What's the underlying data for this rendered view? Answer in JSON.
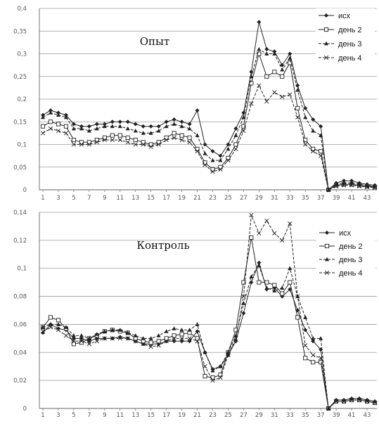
{
  "chart_data": [
    {
      "type": "line",
      "title": "Опыт",
      "xlabel": "",
      "ylabel": "",
      "ylim": [
        0,
        0.4
      ],
      "y_ticks": [
        "0",
        "0,05",
        "0,1",
        "0,15",
        "0,2",
        "0,25",
        "0,3",
        "0,35",
        "0,4"
      ],
      "x_ticks": [
        "1",
        "3",
        "5",
        "7",
        "9",
        "11",
        "13",
        "15",
        "17",
        "19",
        "21",
        "23",
        "25",
        "27",
        "29",
        "31",
        "33",
        "35",
        "37",
        "39",
        "41",
        "43"
      ],
      "grid": true,
      "legend_position": "right",
      "x": [
        1,
        2,
        3,
        4,
        5,
        6,
        7,
        8,
        9,
        10,
        11,
        12,
        13,
        14,
        15,
        16,
        17,
        18,
        19,
        20,
        21,
        22,
        23,
        24,
        25,
        26,
        27,
        28,
        29,
        30,
        31,
        32,
        33,
        34,
        35,
        36,
        37,
        38,
        39,
        40,
        41,
        42,
        43,
        44
      ],
      "series": [
        {
          "name": "исх",
          "values": [
            0.165,
            0.175,
            0.17,
            0.165,
            0.145,
            0.14,
            0.14,
            0.145,
            0.145,
            0.15,
            0.15,
            0.15,
            0.145,
            0.14,
            0.14,
            0.14,
            0.15,
            0.155,
            0.15,
            0.145,
            0.175,
            0.1,
            0.085,
            0.075,
            0.1,
            0.135,
            0.17,
            0.26,
            0.37,
            0.31,
            0.305,
            0.275,
            0.3,
            0.23,
            0.18,
            0.155,
            0.14,
            0,
            0.015,
            0.02,
            0.02,
            0.015,
            0.012,
            0.01
          ]
        },
        {
          "name": "день 2",
          "values": [
            0.14,
            0.15,
            0.145,
            0.14,
            0.11,
            0.105,
            0.105,
            0.11,
            0.115,
            0.12,
            0.12,
            0.115,
            0.11,
            0.105,
            0.1,
            0.105,
            0.115,
            0.125,
            0.12,
            0.115,
            0.09,
            0.06,
            0.045,
            0.05,
            0.07,
            0.1,
            0.14,
            0.235,
            0.3,
            0.25,
            0.26,
            0.25,
            0.28,
            0.18,
            0.11,
            0.09,
            0.085,
            0,
            0.01,
            0.012,
            0.012,
            0.01,
            0.008,
            0.006
          ]
        },
        {
          "name": "день 3",
          "values": [
            0.16,
            0.17,
            0.165,
            0.16,
            0.135,
            0.135,
            0.13,
            0.135,
            0.14,
            0.14,
            0.14,
            0.135,
            0.13,
            0.125,
            0.125,
            0.13,
            0.14,
            0.145,
            0.14,
            0.135,
            0.12,
            0.08,
            0.065,
            0.065,
            0.09,
            0.12,
            0.16,
            0.25,
            0.31,
            0.3,
            0.3,
            0.265,
            0.29,
            0.22,
            0.16,
            0.13,
            0.12,
            0,
            0.012,
            0.015,
            0.015,
            0.012,
            0.01,
            0.008
          ]
        },
        {
          "name": "день 4",
          "values": [
            0.125,
            0.135,
            0.13,
            0.125,
            0.1,
            0.1,
            0.1,
            0.105,
            0.11,
            0.11,
            0.11,
            0.105,
            0.1,
            0.1,
            0.095,
            0.1,
            0.11,
            0.115,
            0.11,
            0.105,
            0.085,
            0.055,
            0.04,
            0.045,
            0.065,
            0.09,
            0.13,
            0.19,
            0.23,
            0.195,
            0.215,
            0.205,
            0.21,
            0.16,
            0.1,
            0.085,
            0.075,
            0,
            0.008,
            0.01,
            0.01,
            0.008,
            0.006,
            0.005
          ]
        }
      ]
    },
    {
      "type": "line",
      "title": "Контроль",
      "xlabel": "",
      "ylabel": "",
      "ylim": [
        0,
        0.14
      ],
      "y_ticks": [
        "0",
        "0,02",
        "0,04",
        "0,06",
        "0,08",
        "0,1",
        "0,12",
        "0,14"
      ],
      "x_ticks": [
        "1",
        "3",
        "5",
        "7",
        "9",
        "11",
        "13",
        "15",
        "17",
        "19",
        "21",
        "23",
        "25",
        "27",
        "29",
        "31",
        "33",
        "35",
        "37",
        "39",
        "41",
        "43"
      ],
      "grid": true,
      "legend_position": "right",
      "x": [
        1,
        2,
        3,
        4,
        5,
        6,
        7,
        8,
        9,
        10,
        11,
        12,
        13,
        14,
        15,
        16,
        17,
        18,
        19,
        20,
        21,
        22,
        23,
        24,
        25,
        26,
        27,
        28,
        29,
        30,
        31,
        32,
        33,
        34,
        35,
        36,
        37,
        38,
        39,
        40,
        41,
        42,
        43,
        44
      ],
      "series": [
        {
          "name": "исх",
          "values": [
            0.054,
            0.06,
            0.057,
            0.056,
            0.05,
            0.05,
            0.048,
            0.05,
            0.05,
            0.05,
            0.051,
            0.05,
            0.048,
            0.046,
            0.046,
            0.046,
            0.048,
            0.048,
            0.048,
            0.048,
            0.055,
            0.04,
            0.028,
            0.03,
            0.038,
            0.048,
            0.068,
            0.09,
            0.104,
            0.085,
            0.086,
            0.08,
            0.085,
            0.07,
            0.056,
            0.048,
            0.042,
            0,
            0.006,
            0.006,
            0.007,
            0.007,
            0.006,
            0.005
          ]
        },
        {
          "name": "день 2",
          "values": [
            0.058,
            0.065,
            0.063,
            0.057,
            0.046,
            0.047,
            0.05,
            0.052,
            0.055,
            0.056,
            0.055,
            0.054,
            0.05,
            0.048,
            0.047,
            0.048,
            0.05,
            0.052,
            0.053,
            0.054,
            0.05,
            0.023,
            0.022,
            0.024,
            0.04,
            0.056,
            0.09,
            0.122,
            0.09,
            0.09,
            0.088,
            0.082,
            0.09,
            0.065,
            0.036,
            0.033,
            0.033,
            0,
            0.005,
            0.005,
            0.006,
            0.006,
            0.005,
            0.004
          ]
        },
        {
          "name": "день 3",
          "values": [
            0.058,
            0.06,
            0.06,
            0.058,
            0.052,
            0.052,
            0.05,
            0.053,
            0.055,
            0.056,
            0.056,
            0.054,
            0.052,
            0.05,
            0.05,
            0.052,
            0.055,
            0.057,
            0.056,
            0.056,
            0.06,
            0.04,
            0.027,
            0.03,
            0.04,
            0.052,
            0.075,
            0.094,
            0.102,
            0.086,
            0.084,
            0.086,
            0.1,
            0.08,
            0.065,
            0.05,
            0.05,
            0,
            0.006,
            0.006,
            0.007,
            0.007,
            0.006,
            0.005
          ]
        },
        {
          "name": "день 4",
          "values": [
            0.055,
            0.058,
            0.056,
            0.052,
            0.048,
            0.048,
            0.046,
            0.048,
            0.05,
            0.05,
            0.05,
            0.05,
            0.048,
            0.046,
            0.044,
            0.045,
            0.048,
            0.05,
            0.05,
            0.05,
            0.048,
            0.03,
            0.02,
            0.022,
            0.038,
            0.05,
            0.08,
            0.138,
            0.125,
            0.134,
            0.125,
            0.12,
            0.132,
            0.08,
            0.045,
            0.038,
            0.036,
            0,
            0.005,
            0.005,
            0.006,
            0.006,
            0.005,
            0.004
          ]
        }
      ]
    }
  ],
  "legend_styles": [
    {
      "marker": "diamond-filled",
      "dash": "solid"
    },
    {
      "marker": "square-open",
      "dash": "solid"
    },
    {
      "marker": "triangle-filled",
      "dash": "dashed"
    },
    {
      "marker": "x",
      "dash": "dashed"
    }
  ],
  "colors": {
    "line": "#222222",
    "grid": "#9a9a9a",
    "axis": "#666666",
    "tick": "#555555"
  }
}
